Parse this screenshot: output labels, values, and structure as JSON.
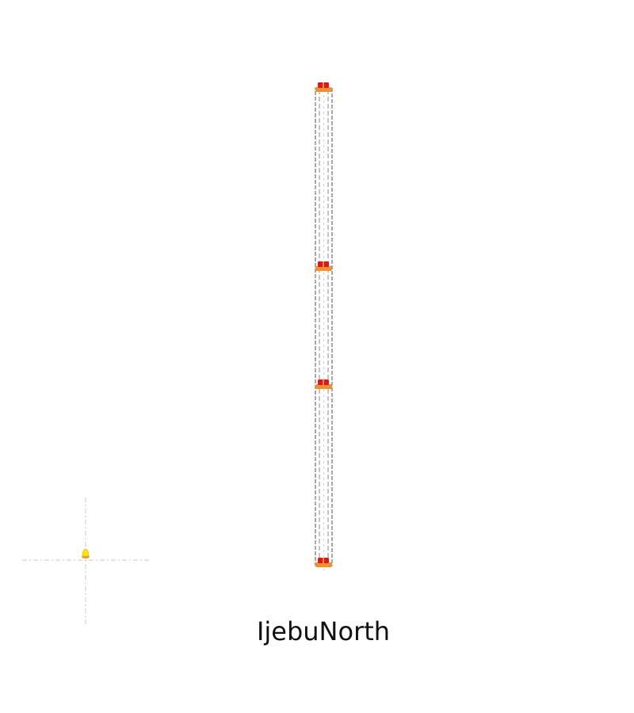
{
  "title": "IjebuNorth",
  "colors": {
    "road_outline": "#6f6f6f",
    "road_center": "#c8c8c8",
    "junction_base": "#f0922b",
    "junction_signal": "#e3141b",
    "marker": "#ffe600",
    "marker_shadow": "#e0a020",
    "guide_line": "#c9c9c9"
  },
  "icons": {
    "junction": "traffic-light-icon",
    "marker": "location-marker-icon",
    "crosshair": "crosshair-icon"
  }
}
